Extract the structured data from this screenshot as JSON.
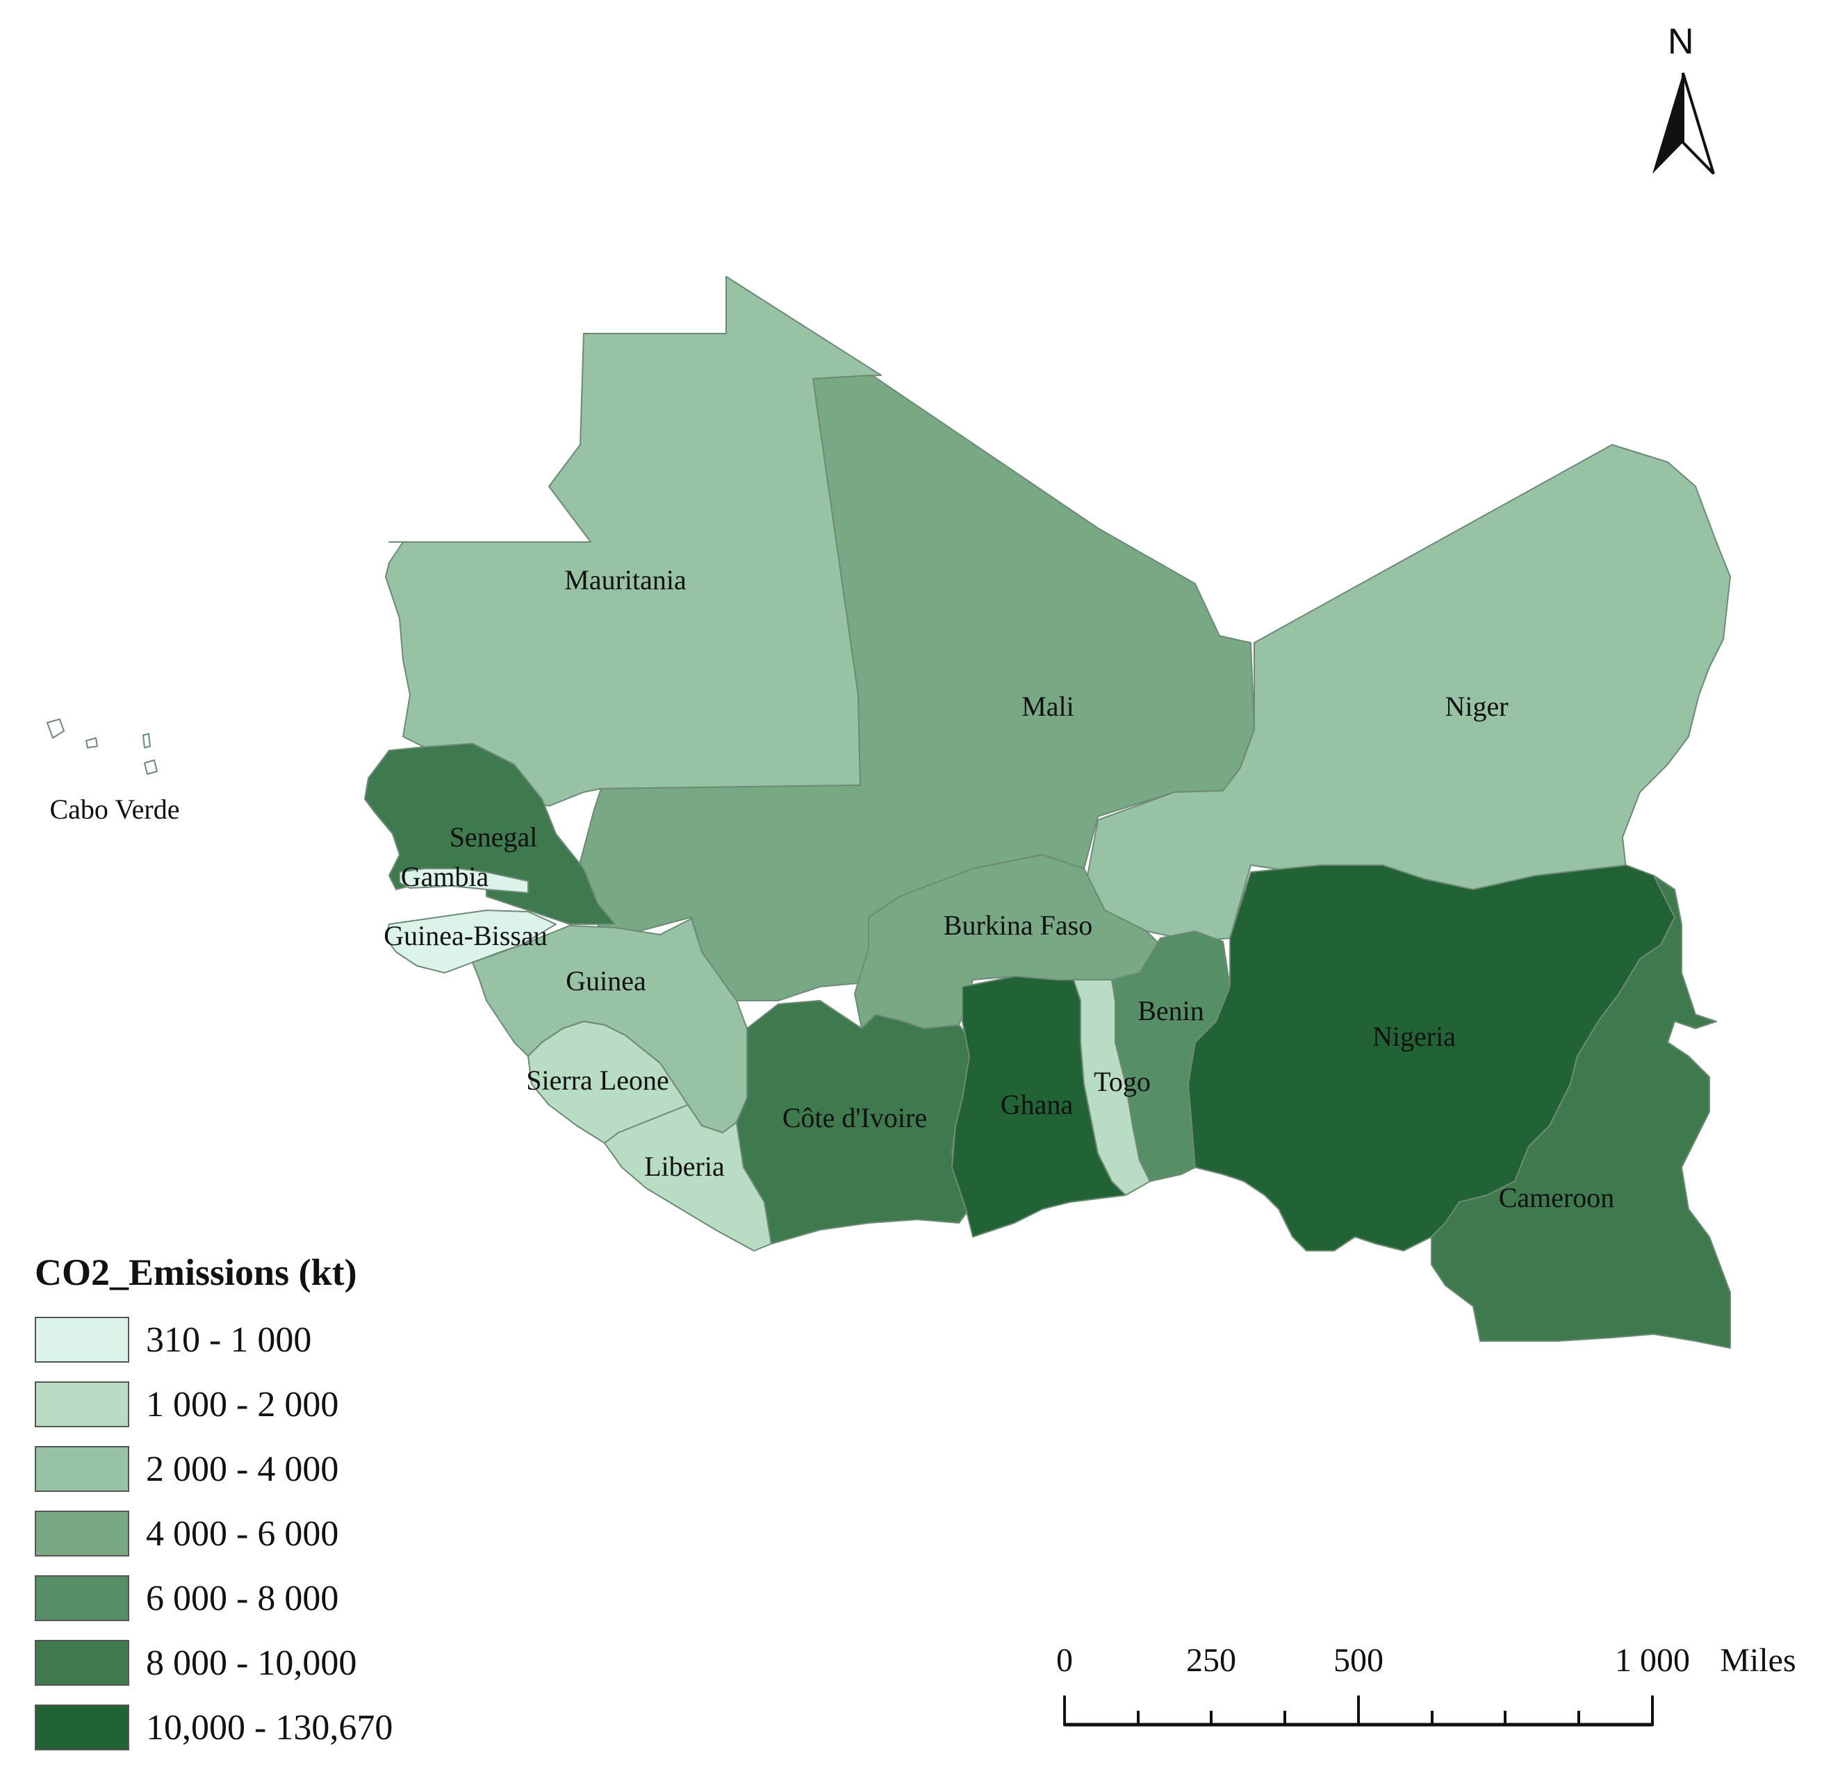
{
  "legend": {
    "title": "CO2_Emissions (kt)",
    "classes": [
      {
        "label": "310 - 1 000",
        "color": "#dcf3ea"
      },
      {
        "label": "1 000 - 2 000",
        "color": "#b9dcc4"
      },
      {
        "label": "2 000 - 4 000",
        "color": "#97c2a3"
      },
      {
        "label": "4 000 - 6 000",
        "color": "#79a884"
      },
      {
        "label": "6 000 - 8 000",
        "color": "#568e66"
      },
      {
        "label": "8 000 - 10,000",
        "color": "#3e7a4e"
      },
      {
        "label": "10,000 - 130,670",
        "color": "#226336"
      }
    ]
  },
  "countries": {
    "mauritania": {
      "label": "Mauritania",
      "class": 2
    },
    "mali": {
      "label": "Mali",
      "class": 3
    },
    "niger": {
      "label": "Niger",
      "class": 2
    },
    "senegal": {
      "label": "Senegal",
      "class": 5
    },
    "gambia": {
      "label": "Gambia",
      "class": 0
    },
    "guinea_bissau": {
      "label": "Guinea-Bissau",
      "class": 0
    },
    "guinea": {
      "label": "Guinea",
      "class": 2
    },
    "sierra_leone": {
      "label": "Sierra Leone",
      "class": 1
    },
    "liberia": {
      "label": "Liberia",
      "class": 1
    },
    "cote_divoire": {
      "label": "Côte d'Ivoire",
      "class": 5
    },
    "burkina_faso": {
      "label": "Burkina Faso",
      "class": 3
    },
    "ghana": {
      "label": "Ghana",
      "class": 6
    },
    "togo": {
      "label": "Togo",
      "class": 1
    },
    "benin": {
      "label": "Benin",
      "class": 4
    },
    "nigeria": {
      "label": "Nigeria",
      "class": 6
    },
    "cameroon": {
      "label": "Cameroon",
      "class": 5
    },
    "cabo_verde": {
      "label": "Cabo Verde",
      "class": 0
    }
  },
  "north_arrow": {
    "label": "N"
  },
  "scale_bar": {
    "ticks": [
      "0",
      "250",
      "500",
      "1 000"
    ],
    "unit": "Miles"
  }
}
